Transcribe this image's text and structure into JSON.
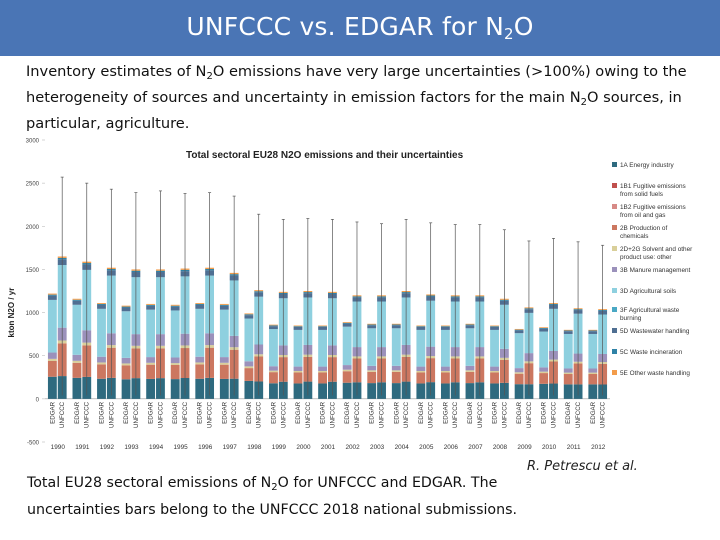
{
  "slide": {
    "title_main": "UNFCCC vs. EDGAR for N",
    "title_sub": "2",
    "title_end": "O",
    "intro": {
      "p1": "Inventory estimates of N",
      "s1": "2",
      "p2": "O emissions have very large uncertainties (>100%) owing to the heterogeneity of sources and uncertainty in emission factors for the main N",
      "s2": "2",
      "p3": "O sources, in particular, agriculture."
    },
    "caption": {
      "p1": "Total EU28 sectoral emissions of N",
      "s1": "2",
      "p2": "O for UNFCCC and EDGAR. The uncertainties bars belong to the UNFCCC 2018 national submissions."
    },
    "credit": "R. Petrescu et al."
  },
  "chart_data": {
    "type": "bar",
    "stacked": true,
    "title": "Total sectoral EU28 N2O emissions and their uncertainties",
    "ylabel": "kton N2O / yr",
    "ylim": [
      -500,
      3000
    ],
    "yticks": [
      -500,
      0,
      500,
      1000,
      1500,
      2000,
      2500,
      3000
    ],
    "years": [
      "1990",
      "1991",
      "1992",
      "1993",
      "1994",
      "1995",
      "1996",
      "1997",
      "1998",
      "1999",
      "2000",
      "2001",
      "2002",
      "2003",
      "2004",
      "2005",
      "2006",
      "2007",
      "2008",
      "2009",
      "2010",
      "2011",
      "2012"
    ],
    "bar_labels": [
      "EDGAR",
      "UNFCCC"
    ],
    "legend_position": "right",
    "series": [
      {
        "name": "1A Energy industry",
        "color": "#2e6a7f"
      },
      {
        "name": "1B1 Fugitive emissions from solid fuels",
        "color": "#c0504d"
      },
      {
        "name": "1B2 Fugitive emissions from oil and gas",
        "color": "#d78a86"
      },
      {
        "name": "2B Production of chemicals",
        "color": "#cc7760"
      },
      {
        "name": "2D+2G Solvent and other product use: other",
        "color": "#d9cf9a"
      },
      {
        "name": "3B Manure management",
        "color": "#9b91bb"
      },
      {
        "name": "3D Agricultural soils",
        "color": "#8ed0df"
      },
      {
        "name": "3F Agricultural waste burning",
        "color": "#4aa8c4"
      },
      {
        "name": "5D Wastewater handling",
        "color": "#4f6f92"
      },
      {
        "name": "5C Waste incineration",
        "color": "#2f82a6"
      },
      {
        "name": "5E Other waste handling",
        "color": "#f39c4a"
      }
    ],
    "edgar_totals": [
      1220,
      1160,
      1110,
      1080,
      1100,
      1090,
      1110,
      1100,
      990,
      860,
      850,
      850,
      890,
      870,
      870,
      850,
      850,
      870,
      850,
      810,
      830,
      800,
      800
    ],
    "unfccc_totals": [
      1650,
      1590,
      1520,
      1500,
      1500,
      1510,
      1520,
      1460,
      1260,
      1240,
      1250,
      1240,
      1200,
      1200,
      1250,
      1210,
      1200,
      1200,
      1160,
      1060,
      1110,
      1050,
      1040
    ],
    "uncertainty_upper": [
      2570,
      2500,
      2430,
      2390,
      2410,
      2380,
      2390,
      2350,
      2140,
      2080,
      2090,
      2080,
      2050,
      2030,
      2080,
      2040,
      2020,
      2020,
      1960,
      1830,
      1860,
      1820,
      1780
    ],
    "uncertainty_lower": [
      40,
      40,
      40,
      40,
      40,
      40,
      40,
      40,
      40,
      40,
      40,
      40,
      40,
      40,
      40,
      40,
      40,
      40,
      40,
      40,
      40,
      40,
      40
    ]
  }
}
